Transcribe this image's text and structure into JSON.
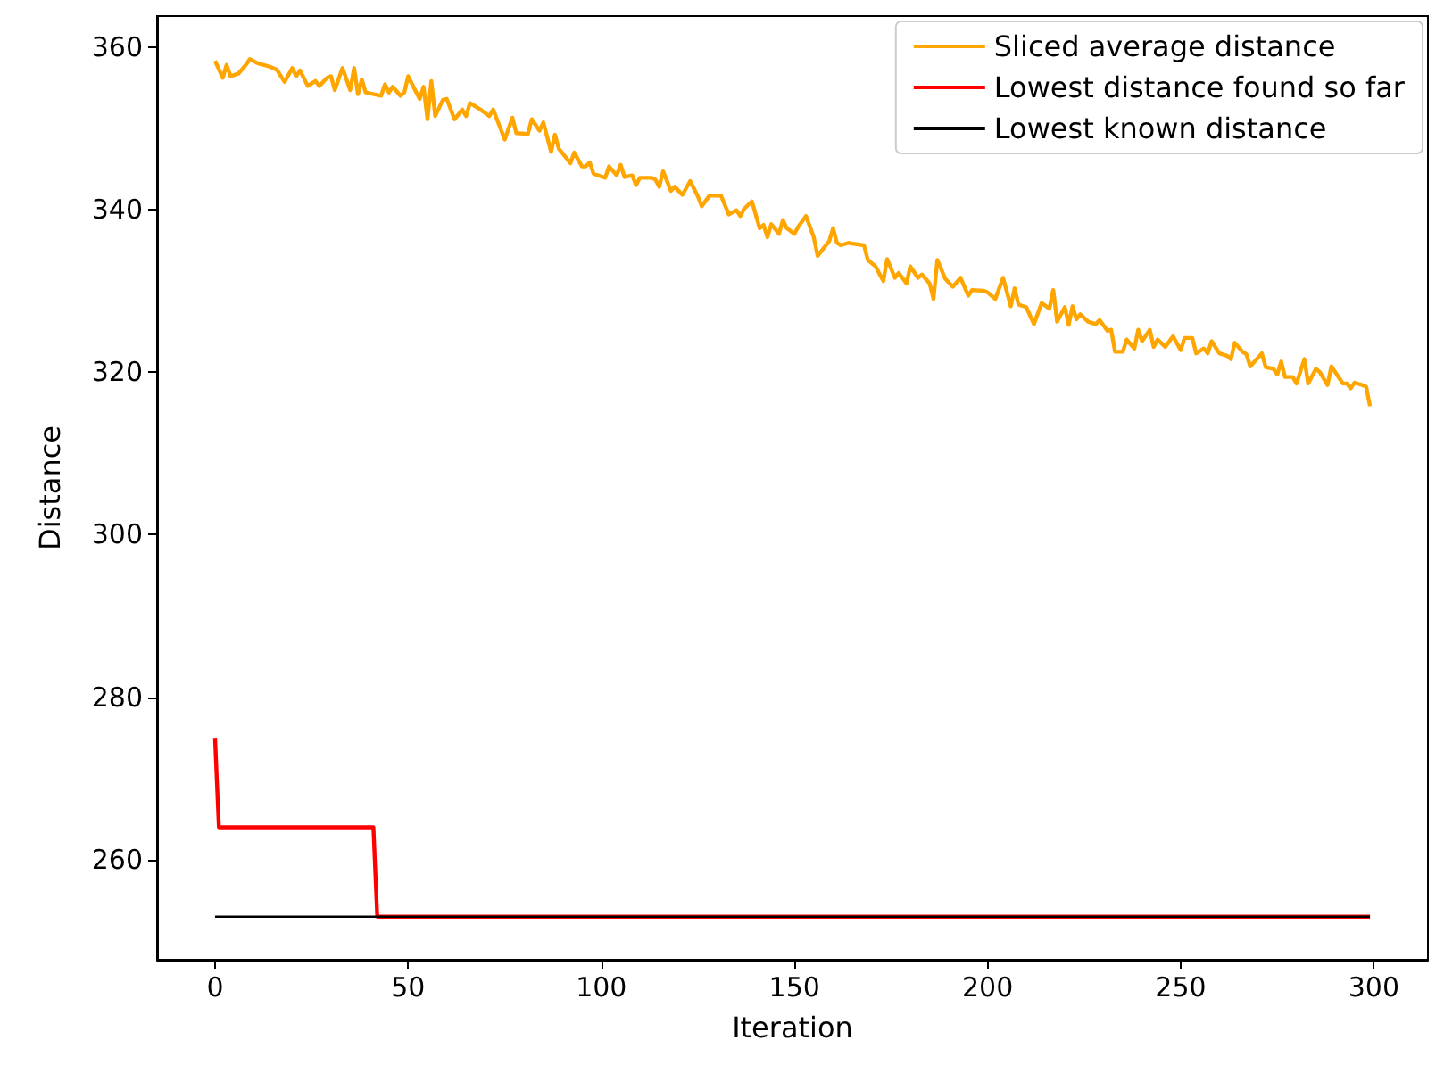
{
  "chart_data": {
    "type": "line",
    "xlabel": "Iteration",
    "ylabel": "Distance",
    "xlim": [
      -15,
      314
    ],
    "ylim": [
      247.7,
      363.8
    ],
    "xticks": [
      0,
      50,
      100,
      150,
      200,
      250,
      300
    ],
    "yticks": [
      260,
      280,
      300,
      320,
      340,
      360
    ],
    "grid": false,
    "legend": "top right",
    "series": [
      {
        "name": "Sliced average distance",
        "color": "#ffa500",
        "x": [
          0,
          2,
          3,
          4,
          6,
          8,
          9,
          11,
          14,
          16,
          18,
          20,
          21,
          22,
          24,
          26,
          27,
          29,
          30,
          31,
          33,
          35,
          36,
          37,
          38,
          39,
          43,
          44,
          45,
          46,
          48,
          49,
          50,
          52,
          53,
          54,
          55,
          56,
          57,
          59,
          60,
          62,
          64,
          65,
          66,
          69,
          71,
          72,
          75,
          77,
          78,
          81,
          82,
          84,
          85,
          87,
          88,
          89,
          92,
          93,
          95,
          96,
          97,
          98,
          101,
          102,
          104,
          105,
          106,
          108,
          109,
          110,
          113,
          114,
          115,
          116,
          118,
          119,
          121,
          123,
          125,
          126,
          128,
          131,
          133,
          135,
          136,
          137,
          139,
          141,
          142,
          143,
          144,
          146,
          147,
          148,
          150,
          151,
          153,
          155,
          156,
          159,
          160,
          161,
          162,
          164,
          165,
          168,
          169,
          171,
          173,
          174,
          176,
          177,
          179,
          180,
          182,
          183,
          185,
          186,
          187,
          189,
          191,
          193,
          195,
          196,
          199,
          200,
          202,
          204,
          206,
          207,
          208,
          210,
          212,
          214,
          216,
          217,
          218,
          220,
          221,
          222,
          223,
          224,
          226,
          228,
          229,
          231,
          232,
          233,
          235,
          236,
          238,
          239,
          240,
          242,
          243,
          244,
          246,
          248,
          250,
          251,
          253,
          254,
          256,
          257,
          258,
          260,
          262,
          263,
          264,
          266,
          267,
          268,
          271,
          272,
          274,
          275,
          276,
          277,
          279,
          280,
          282,
          283,
          285,
          286,
          288,
          289,
          292,
          293,
          294,
          295,
          297,
          298,
          299
        ],
        "values": [
          358.3,
          356.2,
          357.8,
          356.4,
          356.7,
          357.8,
          358.5,
          358,
          357.6,
          357.2,
          355.7,
          357.4,
          356.4,
          357.1,
          355.2,
          355.8,
          355.2,
          356.2,
          356.4,
          354.7,
          357.4,
          354.7,
          357.4,
          354.2,
          356,
          354.4,
          354,
          355.4,
          354.4,
          355.1,
          354,
          354.4,
          356.4,
          354.5,
          353.6,
          355.1,
          351.1,
          355.8,
          351.5,
          353.5,
          353.6,
          351.1,
          352.3,
          351.5,
          353.1,
          352.2,
          351.5,
          352.3,
          348.6,
          351.3,
          349.4,
          349.3,
          351.1,
          349.7,
          350.7,
          347.1,
          349.2,
          347.5,
          345.7,
          347,
          345.3,
          345.3,
          345.8,
          344.4,
          343.9,
          345.3,
          344.2,
          345.5,
          344,
          344.2,
          343,
          343.9,
          343.9,
          343.7,
          342.8,
          344.7,
          342.3,
          342.8,
          341.8,
          343.5,
          341.6,
          340.4,
          341.7,
          341.7,
          339.4,
          339.9,
          339.2,
          340.1,
          341,
          337.7,
          338.1,
          336.6,
          338.2,
          337,
          338.7,
          337.7,
          337,
          337.9,
          339.2,
          336.6,
          334.3,
          336.1,
          337.7,
          335.9,
          335.6,
          335.9,
          335.8,
          335.6,
          333.8,
          333,
          331.2,
          333.9,
          331.6,
          332.2,
          330.9,
          333,
          331.6,
          332,
          330.9,
          329,
          333.8,
          331.5,
          330.5,
          331.6,
          329.4,
          330.1,
          330,
          329.8,
          329,
          331.6,
          328.1,
          330.3,
          328.3,
          328,
          325.9,
          328.5,
          327.8,
          330.1,
          326.2,
          328,
          325.8,
          328.1,
          326.5,
          327.1,
          326.2,
          325.9,
          326.4,
          325.1,
          325.2,
          322.5,
          322.5,
          324,
          322.9,
          325.2,
          323.8,
          325.2,
          323.1,
          324,
          323.1,
          324.4,
          322.7,
          324.2,
          324.2,
          322.3,
          322.9,
          322.3,
          323.8,
          322.3,
          322,
          321.6,
          323.6,
          322.5,
          322.2,
          320.7,
          322.3,
          320.6,
          320.4,
          319.7,
          321.3,
          319.4,
          319.4,
          318.6,
          321.6,
          318.6,
          320.4,
          320,
          318.4,
          320.7,
          318.6,
          318.6,
          318,
          318.7,
          318.4,
          318.2,
          315.8
        ]
      },
      {
        "name": "Lowest distance found so far",
        "color": "#ff0000",
        "x": [
          0,
          1,
          41,
          42,
          299
        ],
        "values": [
          275,
          264,
          264,
          253,
          253
        ]
      },
      {
        "name": "Lowest known distance",
        "color": "#000000",
        "x": [
          0,
          299
        ],
        "values": [
          253,
          253
        ]
      }
    ]
  }
}
